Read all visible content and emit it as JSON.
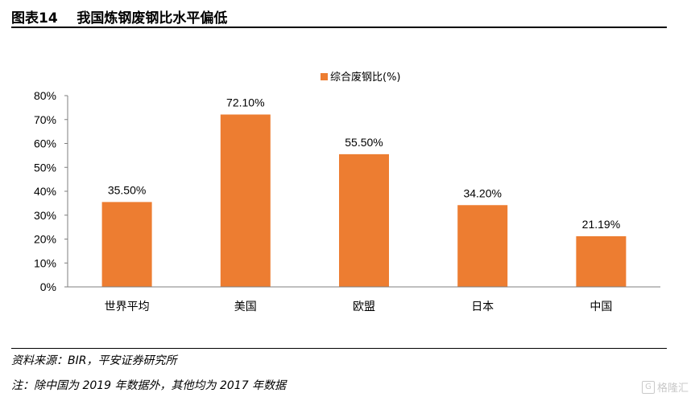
{
  "header": {
    "figure_no": "图表14",
    "title": "我国炼钢废钢比水平偏低"
  },
  "chart_data": {
    "type": "bar",
    "categories": [
      "世界平均",
      "美国",
      "欧盟",
      "日本",
      "中国"
    ],
    "series": [
      {
        "name": "综合废钢比(%)",
        "values": [
          35.5,
          72.1,
          55.5,
          34.2,
          21.19
        ]
      }
    ],
    "data_labels": [
      "35.50%",
      "72.10%",
      "55.50%",
      "34.20%",
      "21.19%"
    ],
    "y_ticks": [
      "0%",
      "10%",
      "20%",
      "30%",
      "40%",
      "50%",
      "60%",
      "70%",
      "80%"
    ],
    "ylim": [
      0,
      80
    ],
    "grid": false,
    "legend_position": "top-center",
    "bar_color": "#ED7D31"
  },
  "footer": {
    "source": "资料来源：BIR，平安证券研究所",
    "note": "注：除中国为 2019 年数据外，其他均为 2017 年数据"
  },
  "watermark": {
    "icon": "G",
    "text": "格隆汇"
  }
}
